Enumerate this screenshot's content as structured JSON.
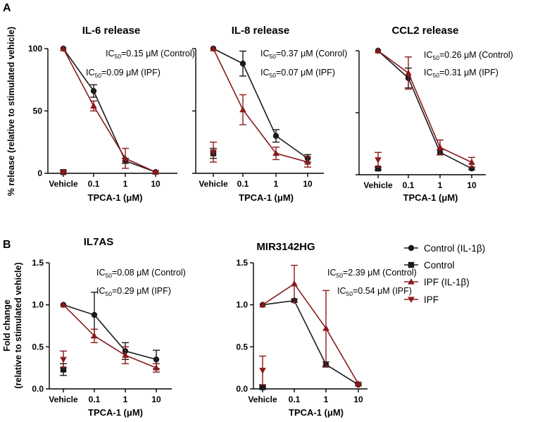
{
  "panel_labels": [
    "A",
    "B"
  ],
  "shared": {
    "x_label": "TPCA-1 (μM)",
    "categories": [
      "Vehicle",
      "0.1",
      "1",
      "10"
    ],
    "y_label_a": "% release (relative to stimulated vehicle)",
    "y_label_b_line1": "Fold change",
    "y_label_b_line2": "(relative to stimulated vehicle)"
  },
  "legend": [
    {
      "label": "Control (IL-1β)",
      "marker": "circle",
      "color": "#1a1a1a"
    },
    {
      "label": "Control",
      "marker": "square",
      "color": "#1a1a1a"
    },
    {
      "label": "IPF (IL-1β)",
      "marker": "triangle-up",
      "color": "#8b1a1a"
    },
    {
      "label": "IPF",
      "marker": "triangle-down",
      "color": "#8b1a1a"
    }
  ],
  "colors": {
    "control": "#1a1a1a",
    "ipf": "#8b1a1a"
  },
  "chart_data": [
    {
      "type": "line",
      "panel": "A",
      "title": "IL-6 release",
      "ic50_control": "=0.15 μM (Control)",
      "ic50_ipf": "=0.09 μM (IPF)",
      "ylim": [
        0,
        100
      ],
      "yticks": [
        0,
        50,
        100
      ],
      "ytick_labels": [
        "0",
        "50",
        "100"
      ],
      "series": [
        {
          "name": "Control (IL-1β)",
          "x": [
            0.1,
            1,
            10
          ],
          "y": [
            66,
            10,
            1
          ],
          "err": [
            5,
            2,
            1
          ],
          "vehicle_y": 100,
          "vehicle_err": 0
        },
        {
          "name": "IPF (IL-1β)",
          "x": [
            0.1,
            1,
            10
          ],
          "y": [
            54,
            12,
            1
          ],
          "err": [
            4,
            8,
            1
          ],
          "vehicle_y": 100,
          "vehicle_err": 0
        },
        {
          "name": "Control",
          "vehicle_y": 1,
          "vehicle_err": 1
        },
        {
          "name": "IPF",
          "vehicle_y": 1,
          "vehicle_err": 1
        }
      ]
    },
    {
      "type": "line",
      "panel": "A",
      "title": "IL-8 release",
      "ic50_control": "=0.37 μM (Conrol)",
      "ic50_ipf": "=0.07 μM (IPF)",
      "ylim": [
        0,
        100
      ],
      "yticks": [
        0,
        50,
        100
      ],
      "ytick_labels": [
        "",
        "",
        ""
      ],
      "series": [
        {
          "name": "Control (IL-1β)",
          "x": [
            0.1,
            1,
            10
          ],
          "y": [
            88,
            30,
            12
          ],
          "err": [
            10,
            5,
            3
          ],
          "vehicle_y": 100,
          "vehicle_err": 0
        },
        {
          "name": "IPF (IL-1β)",
          "x": [
            0.1,
            1,
            10
          ],
          "y": [
            51,
            16,
            9
          ],
          "err": [
            12,
            5,
            4
          ],
          "vehicle_y": 100,
          "vehicle_err": 0
        },
        {
          "name": "Control",
          "vehicle_y": 16,
          "vehicle_err": 4
        },
        {
          "name": "IPF",
          "vehicle_y": 17,
          "vehicle_err": 8
        }
      ]
    },
    {
      "type": "line",
      "panel": "A",
      "title": "CCL2 release",
      "ic50_control": "=0.26 μM (Control)",
      "ic50_ipf": "=0.31 μM (IPF)",
      "ylim": [
        0,
        100
      ],
      "yticks": [
        0,
        50,
        100
      ],
      "ytick_labels": [
        "",
        "",
        ""
      ],
      "series": [
        {
          "name": "Control (IL-1β)",
          "x": [
            0.1,
            1,
            10
          ],
          "y": [
            78,
            18,
            5
          ],
          "err": [
            8,
            2,
            1
          ],
          "vehicle_y": 100,
          "vehicle_err": 0
        },
        {
          "name": "IPF (IL-1β)",
          "x": [
            0.1,
            1,
            10
          ],
          "y": [
            82,
            22,
            10
          ],
          "err": [
            13,
            6,
            4
          ],
          "vehicle_y": 100,
          "vehicle_err": 0
        },
        {
          "name": "Control",
          "vehicle_y": 5,
          "vehicle_err": 1
        },
        {
          "name": "IPF",
          "vehicle_y": 12,
          "vehicle_err": 6
        }
      ]
    },
    {
      "type": "line",
      "panel": "B",
      "title": "IL7AS",
      "ic50_control": "=0.08 μM (Control)",
      "ic50_ipf": "=0.29 μM (IPF)",
      "ylim": [
        0,
        1.5
      ],
      "yticks": [
        0,
        0.5,
        1.0,
        1.5
      ],
      "ytick_labels": [
        "0.0",
        "0.5",
        "1.0",
        "1.5"
      ],
      "series": [
        {
          "name": "Control (IL-1β)",
          "x": [
            0.1,
            1,
            10
          ],
          "y": [
            0.88,
            0.45,
            0.35
          ],
          "err": [
            0.27,
            0.1,
            0.11
          ],
          "vehicle_y": 1.0,
          "vehicle_err": 0
        },
        {
          "name": "IPF (IL-1β)",
          "x": [
            0.1,
            1,
            10
          ],
          "y": [
            0.63,
            0.4,
            0.25
          ],
          "err": [
            0.08,
            0.1,
            0.05
          ],
          "vehicle_y": 1.0,
          "vehicle_err": 0
        },
        {
          "name": "Control",
          "vehicle_y": 0.23,
          "vehicle_err": 0.07
        },
        {
          "name": "IPF",
          "vehicle_y": 0.35,
          "vehicle_err": 0.1
        }
      ]
    },
    {
      "type": "line",
      "panel": "B",
      "title": "MIR3142HG",
      "ic50_control": "=2.39 μM (Control)",
      "ic50_ipf": "=0.54 μM (IPF)",
      "ylim": [
        0,
        1.5
      ],
      "yticks": [
        0,
        0.5,
        1.0,
        1.5
      ],
      "ytick_labels": [
        "0.0",
        "0.5",
        "1.0",
        "1.5"
      ],
      "series": [
        {
          "name": "Control (IL-1β)",
          "x": [
            0.1,
            1,
            10
          ],
          "y": [
            1.05,
            0.29,
            0.05
          ],
          "err": [
            0.02,
            0.03,
            0.01
          ],
          "vehicle_y": 1.0,
          "vehicle_err": 0
        },
        {
          "name": "IPF (IL-1β)",
          "x": [
            0.1,
            1,
            10
          ],
          "y": [
            1.25,
            0.72,
            0.06
          ],
          "err": [
            0.22,
            0.45,
            0.02
          ],
          "vehicle_y": 1.0,
          "vehicle_err": 0
        },
        {
          "name": "Control",
          "vehicle_y": 0.02,
          "vehicle_err": 0.01
        },
        {
          "name": "IPF",
          "vehicle_y": 0.22,
          "vehicle_err": 0.17
        }
      ]
    }
  ]
}
